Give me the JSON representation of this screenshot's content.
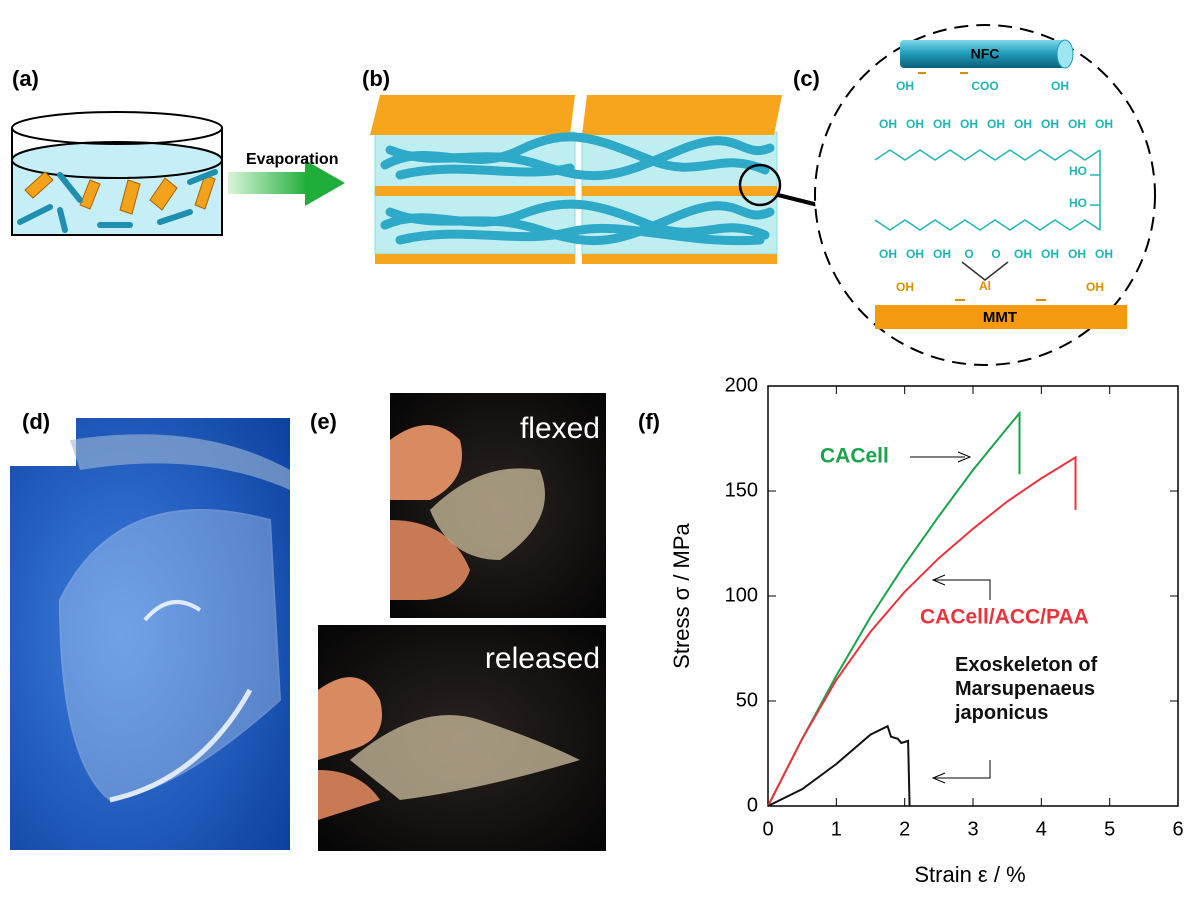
{
  "panels": {
    "a": {
      "label": "(a)",
      "arrow_text": "Evaporation"
    },
    "b": {
      "label": "(b)"
    },
    "c": {
      "label": "(c)",
      "nfc": "NFC",
      "top_groups": [
        "OH",
        "COO",
        "OH"
      ],
      "upper_oh": [
        "OH",
        "OH",
        "OH",
        "OH",
        "OH",
        "OH",
        "OH",
        "OH",
        "OH"
      ],
      "ho": [
        "HO",
        "HO"
      ],
      "lower_groups": [
        "OH",
        "OH",
        "OH",
        "O",
        "O",
        "OH",
        "OH",
        "OH",
        "OH"
      ],
      "al": "Al",
      "mmt_groups": [
        "OH",
        "OH"
      ],
      "mmt": "MMT"
    },
    "d": {
      "label": "(d)"
    },
    "e": {
      "label": "(e)",
      "top": "flexed",
      "bottom": "released"
    },
    "f": {
      "label": "(f)"
    }
  },
  "chart_data": {
    "type": "line",
    "xlabel": "Strain ε / %",
    "ylabel": "Stress σ / MPa",
    "xlim": [
      0,
      6
    ],
    "ylim": [
      0,
      200
    ],
    "xticks": [
      0,
      1,
      2,
      3,
      4,
      5,
      6
    ],
    "yticks": [
      0,
      50,
      100,
      150,
      200
    ],
    "series": [
      {
        "name": "CACell",
        "color": "#1aa34a",
        "x": [
          0,
          0.5,
          1,
          1.5,
          2,
          2.5,
          3,
          3.5,
          3.68,
          3.68
        ],
        "values": [
          0,
          32,
          62,
          90,
          115,
          138,
          160,
          180,
          187,
          158
        ]
      },
      {
        "name": "CACell/ACC/PAA",
        "color": "#e8343c",
        "x": [
          0,
          0.5,
          1,
          1.5,
          2,
          2.5,
          3,
          3.5,
          4,
          4.5,
          4.5
        ],
        "values": [
          0,
          32,
          60,
          83,
          102,
          118,
          132,
          145,
          156,
          166,
          141
        ]
      },
      {
        "name": "Exoskeleton of Marsupenaeus japonicus",
        "color": "#111111",
        "x": [
          0,
          0.5,
          1,
          1.5,
          1.75,
          1.8,
          1.9,
          1.95,
          2.05,
          2.07,
          2.07
        ],
        "values": [
          0,
          8,
          20,
          34,
          38,
          33,
          32,
          30,
          31,
          2,
          0
        ]
      }
    ]
  }
}
